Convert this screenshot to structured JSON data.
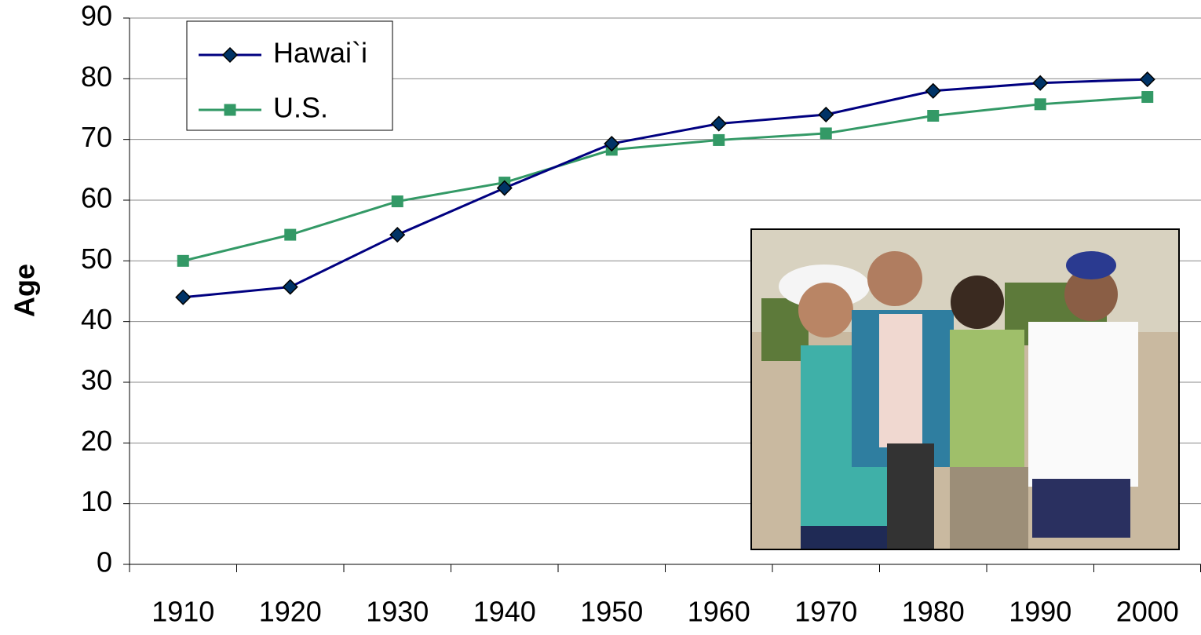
{
  "chart_data": {
    "type": "line",
    "y_label": "Age",
    "categories": [
      "1910",
      "1920",
      "1930",
      "1940",
      "1950",
      "1960",
      "1970",
      "1980",
      "1990",
      "2000"
    ],
    "series": [
      {
        "name": "Hawai`i",
        "color": "#000080",
        "marker": "diamond",
        "marker_color": "#003366",
        "values": [
          44,
          45.7,
          54.3,
          62,
          69.3,
          72.6,
          74.1,
          78,
          79.3,
          79.9
        ]
      },
      {
        "name": "U.S.",
        "color": "#339966",
        "marker": "square",
        "marker_color": "#339966",
        "values": [
          50,
          54.3,
          59.8,
          62.9,
          68.3,
          69.9,
          71,
          73.9,
          75.8,
          77
        ]
      }
    ],
    "ylim": [
      0,
      90
    ],
    "yticks": [
      0,
      10,
      20,
      30,
      40,
      50,
      60,
      70,
      80,
      90
    ],
    "grid": true,
    "legend": "top-left"
  }
}
